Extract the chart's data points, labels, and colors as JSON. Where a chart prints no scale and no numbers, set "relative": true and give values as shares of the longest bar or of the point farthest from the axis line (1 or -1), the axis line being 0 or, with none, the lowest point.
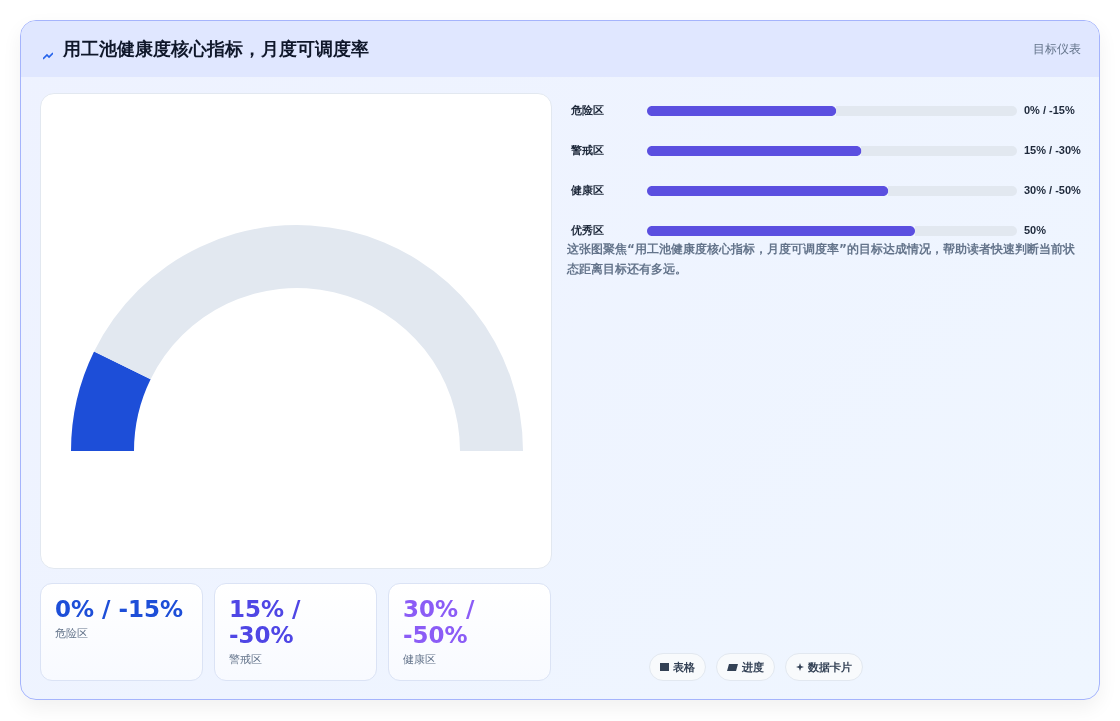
{
  "chart_data": [
    {
      "type": "other",
      "title": "用工池健康度核心指标，月度可调度率",
      "subtitle": "目标仪表"
    },
    {
      "type": "donut",
      "categories": [
        null,
        null
      ],
      "values": [
        14.5,
        85.5
      ],
      "colors": [
        "#1d4ed8",
        "#e2e8f0"
      ]
    },
    {
      "type": "bar",
      "orientation": "horizontal",
      "relative": true,
      "categories": [
        "危险区",
        "警戒区",
        "健康区",
        "优秀区"
      ],
      "values": [
        0.706,
        0.8,
        0.9,
        1
      ],
      "color": "#5b4fe0",
      "annotations": [
        "0% / -15%",
        "15% / -30%",
        "30% / -50%",
        "50%"
      ]
    },
    {
      "type": "other",
      "annotations": [
        "这张图聚焦“用工池健康度核心指标，月度可调度率”的目标达成情况，帮助读者快速判断当前状态距离目标还有多远。"
      ]
    },
    {
      "type": "other",
      "annotations": [
        "0% / -15%",
        "危险区",
        "15% / -30%",
        "警戒区",
        "30% / -50%",
        "健康区"
      ]
    },
    {
      "type": "other",
      "annotations": [
        "表格",
        "进度",
        "数据卡片"
      ]
    }
  ]
}
